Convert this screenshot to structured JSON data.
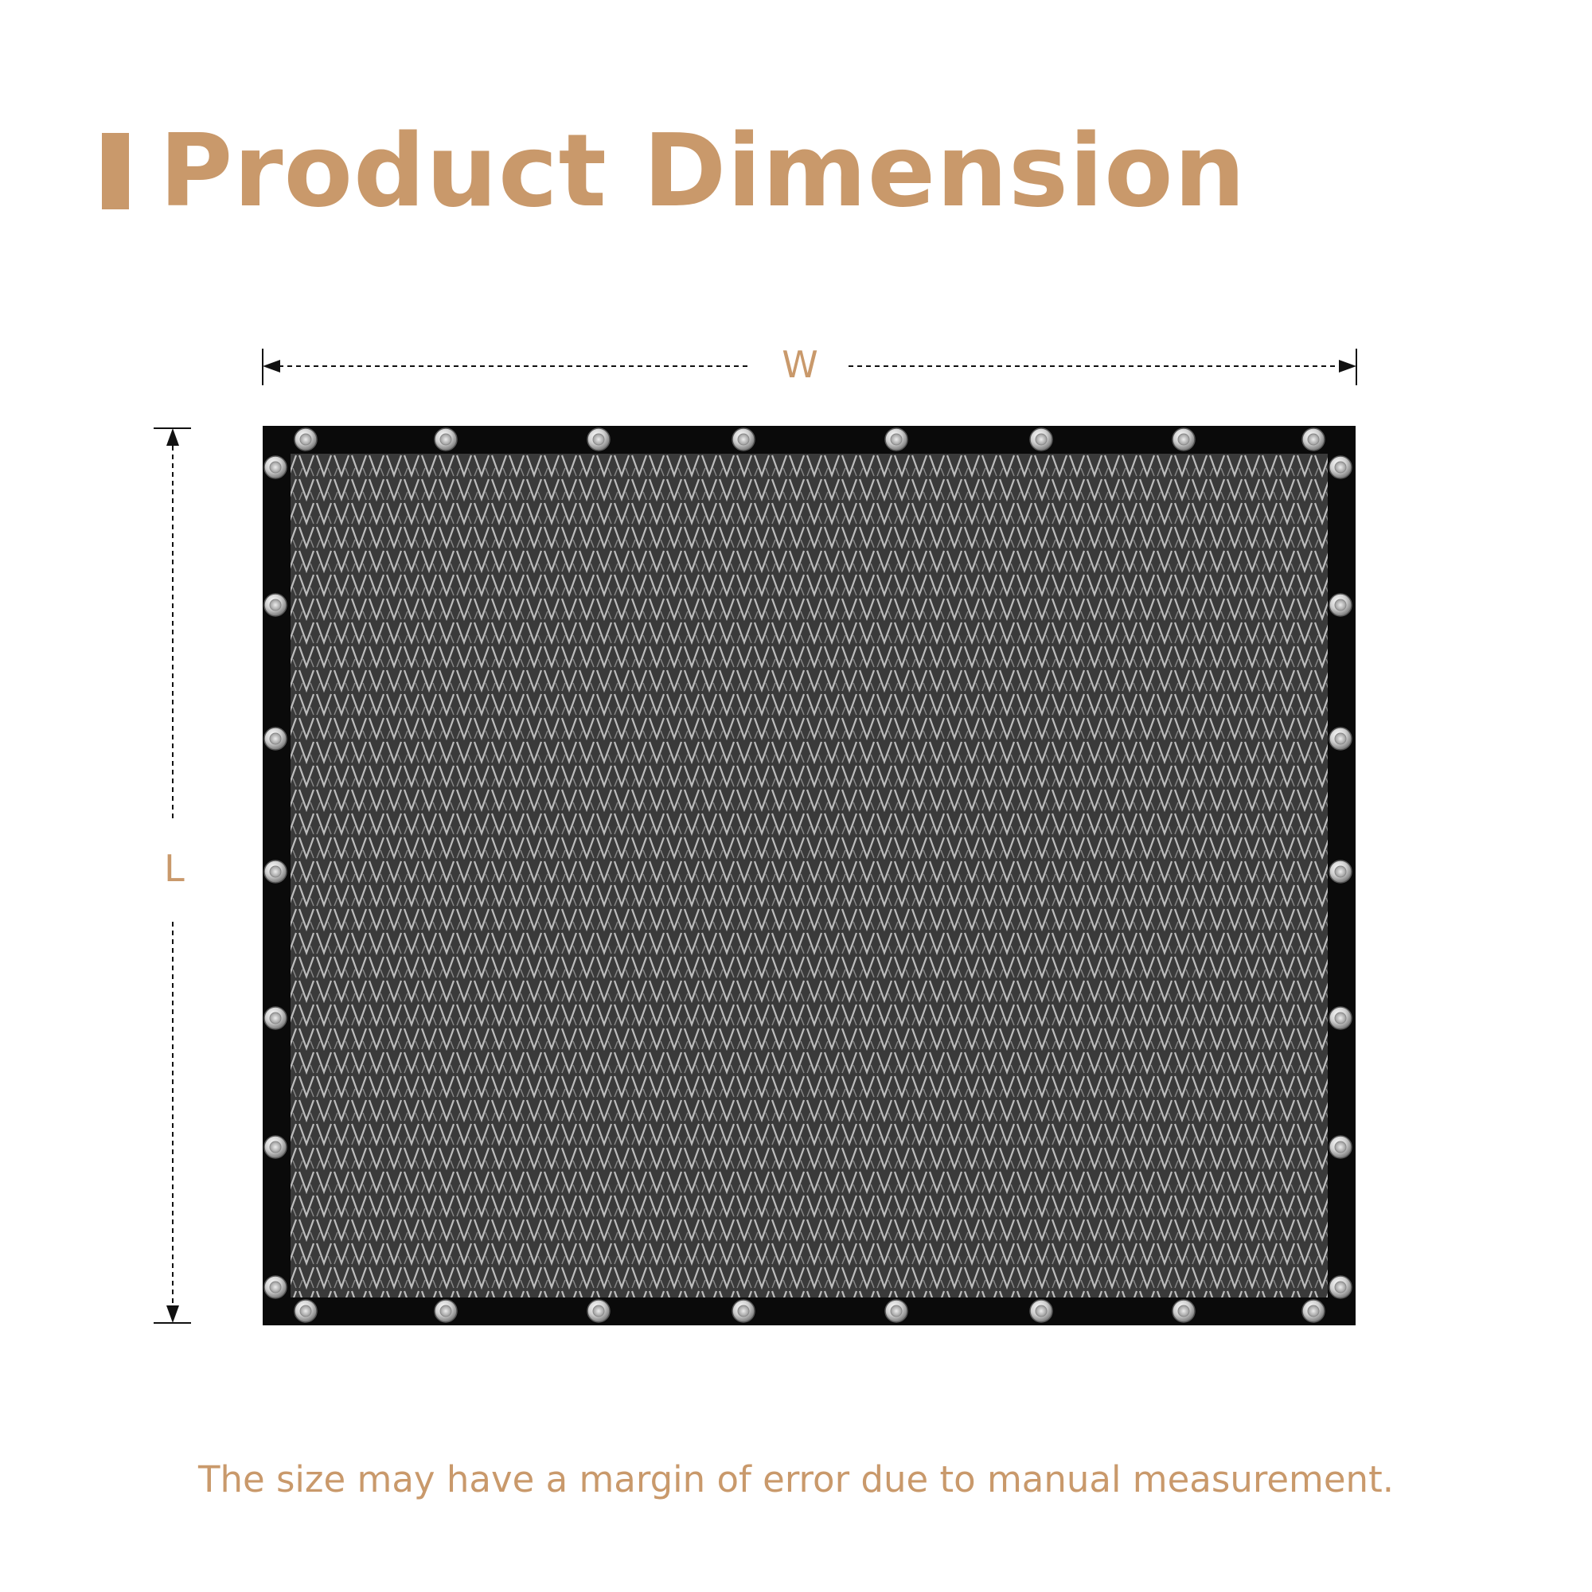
{
  "header": {
    "title": "Product Dimension"
  },
  "dimensions": {
    "width_label": "W",
    "length_label": "L"
  },
  "footnote": "The size may have a margin of error due to manual measurement.",
  "colors": {
    "accent": "#C9996B",
    "frame": "#0a0a0a",
    "mesh": "#3a3a3a",
    "arrow": "#111111"
  },
  "icons": {
    "grommet": "grommet-icon"
  }
}
